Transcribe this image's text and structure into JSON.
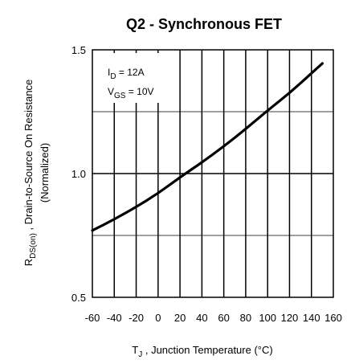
{
  "chart_data": {
    "type": "line",
    "title": "Q2 - Synchronous FET",
    "xlabel": {
      "main": "T",
      "sub": "J",
      "rest": " , Junction Temperature (°C)"
    },
    "ylabel": {
      "line1_main": "R",
      "line1_sub": "DS(on)",
      "line1_rest": " , Drain-to-Source On Resistance",
      "line2": "(Normalized)"
    },
    "xlim": [
      -60,
      160
    ],
    "ylim": [
      0.5,
      1.5
    ],
    "x_ticks": [
      -60,
      -40,
      -20,
      0,
      20,
      40,
      60,
      80,
      100,
      120,
      140,
      160
    ],
    "x_tick_labels": [
      "-60",
      "-40",
      "-20",
      "0",
      "20",
      "40",
      "60",
      "80",
      "100",
      "120",
      "140",
      "160"
    ],
    "y_ticks": [
      0.5,
      1.0,
      1.5
    ],
    "y_tick_labels": [
      "0.5",
      "1.0",
      "1.5"
    ],
    "y_grid": [
      0.75,
      1.25
    ],
    "grid": true,
    "annotations": [
      {
        "main": "I",
        "sub": "D",
        "rest": " = 12A"
      },
      {
        "main": "V",
        "sub": "GS",
        "rest": " = 10V"
      }
    ],
    "series": [
      {
        "x": [
          -60,
          -40,
          -20,
          0,
          20,
          40,
          60,
          80,
          100,
          120,
          140,
          150
        ],
        "y": [
          0.77,
          0.815,
          0.865,
          0.92,
          0.985,
          1.045,
          1.11,
          1.18,
          1.255,
          1.325,
          1.405,
          1.445
        ]
      }
    ],
    "colors": {
      "line": "#000000",
      "grid": "#000000",
      "background": "#ffffff"
    }
  }
}
